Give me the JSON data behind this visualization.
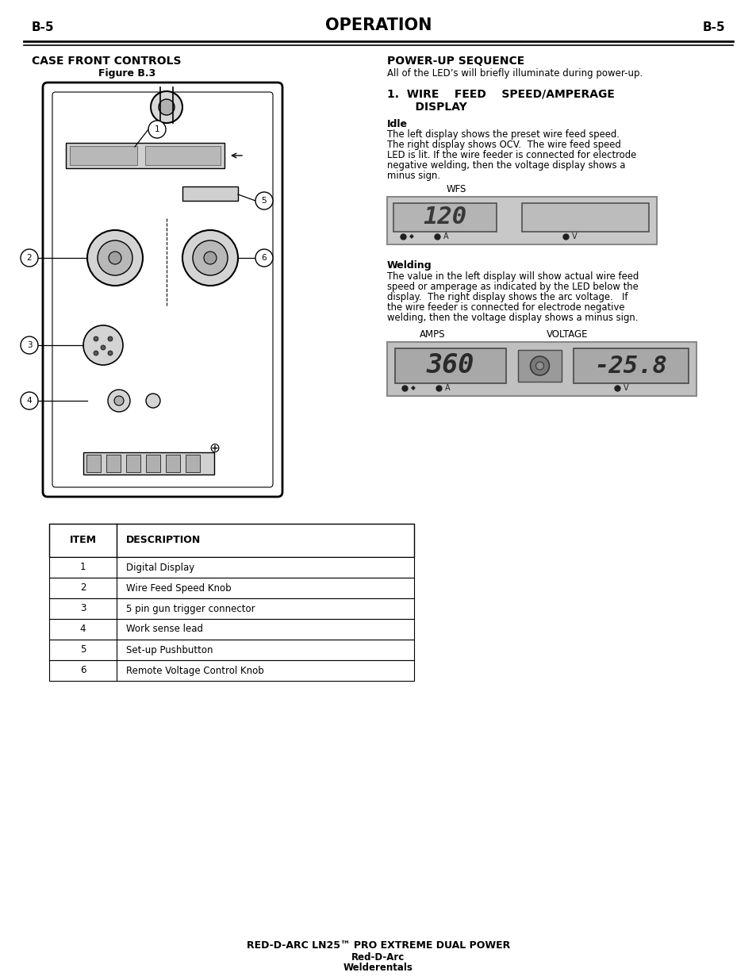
{
  "page_bg": "#ffffff",
  "header_text_left": "B-5",
  "header_text_center": "OPERATION",
  "header_text_right": "B-5",
  "left_col_title": "CASE FRONT CONTROLS",
  "left_col_subtitle": "Figure B.3",
  "right_col_title": "POWER-UP SEQUENCE",
  "right_col_intro": "All of the LED’s will briefly illuminate during power-up.",
  "section1_title_line1": "1.  WIRE    FEED    SPEED/AMPERAGE",
  "section1_title_line2": "    DISPLAY",
  "idle_title": "Idle",
  "idle_text_lines": [
    "The left display shows the preset wire feed speed.",
    "The right display shows OCV.  The wire feed speed",
    "LED is lit. If the wire feeder is connected for electrode",
    "negative welding, then the voltage display shows a",
    "minus sign."
  ],
  "wfs_label": "WFS",
  "idle_display_left": "120",
  "welding_title": "Welding",
  "welding_text_lines": [
    "The value in the left display will show actual wire feed",
    "speed or amperage as indicated by the LED below the",
    "display.  The right display shows the arc voltage.   If",
    "the wire feeder is connected for electrode negative",
    "welding, then the voltage display shows a minus sign."
  ],
  "amps_label": "AMPS",
  "voltage_label": "VOLTAGE",
  "welding_display_left": "360",
  "welding_display_right": "-25.8",
  "table_headers": [
    "ITEM",
    "DESCRIPTION"
  ],
  "table_rows": [
    [
      "1",
      "Digital Display"
    ],
    [
      "2",
      "Wire Feed Speed Knob"
    ],
    [
      "3",
      "5 pin gun trigger connector"
    ],
    [
      "4",
      "Work sense lead"
    ],
    [
      "5",
      "Set-up Pushbutton"
    ],
    [
      "6",
      "Remote Voltage Control Knob"
    ]
  ],
  "footer_line1": "RED-D-ARC LN25™ PRO EXTREME DUAL POWER",
  "footer_line2": "Red-D-Arc",
  "footer_line3": "Welderentals"
}
